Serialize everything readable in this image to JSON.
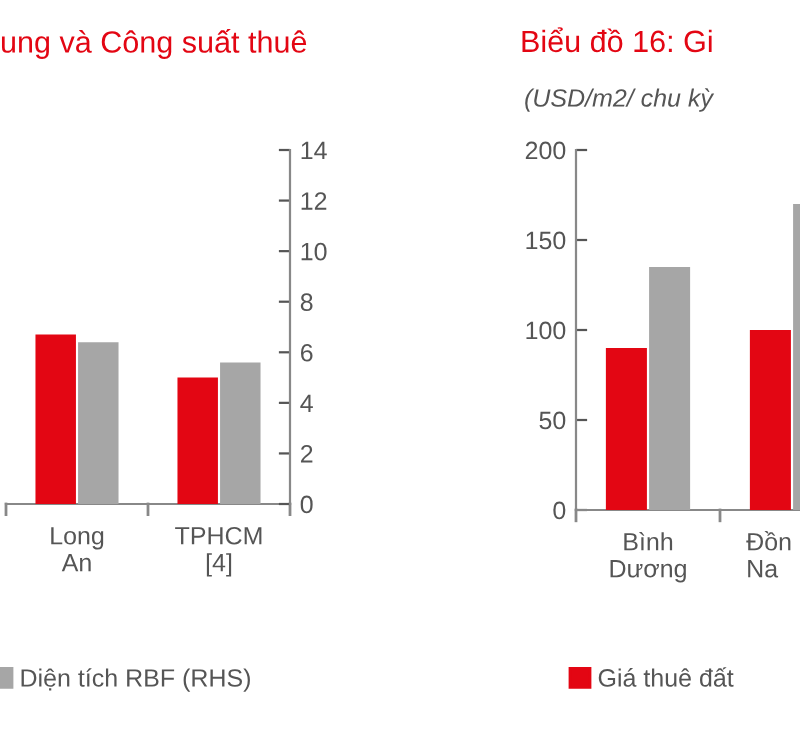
{
  "chart_data": [
    {
      "type": "bar",
      "title": "ung và Công suất thuê",
      "categories": [
        "Long\nAn",
        "TPHCM\n[4]"
      ],
      "series": [
        {
          "color": "#e30613",
          "values": [
            6.7,
            5.0
          ],
          "axis": "y2"
        },
        {
          "name": "Diện tích RBF (RHS)",
          "color": "#a6a6a6",
          "values": [
            6.4,
            5.6
          ],
          "axis": "y2"
        }
      ],
      "y2lim": [
        0,
        14
      ],
      "y2ticks": [
        0,
        2,
        4,
        6,
        8,
        10,
        12,
        14
      ],
      "legend": "bottom",
      "grid": false
    },
    {
      "type": "bar",
      "title": "Biểu đồ 16: Gi",
      "subtitle": "(USD/m2/ chu kỳ",
      "categories": [
        "Bình\nDương",
        "Đồn\nNa"
      ],
      "series": [
        {
          "name": "Giá thuê đất",
          "color": "#e30613",
          "values": [
            90,
            100
          ]
        },
        {
          "color": "#a6a6a6",
          "values": [
            135,
            170
          ]
        }
      ],
      "ylim": [
        0,
        200
      ],
      "yticks": [
        0,
        50,
        100,
        150,
        200
      ],
      "legend": "bottom",
      "grid": false
    }
  ]
}
